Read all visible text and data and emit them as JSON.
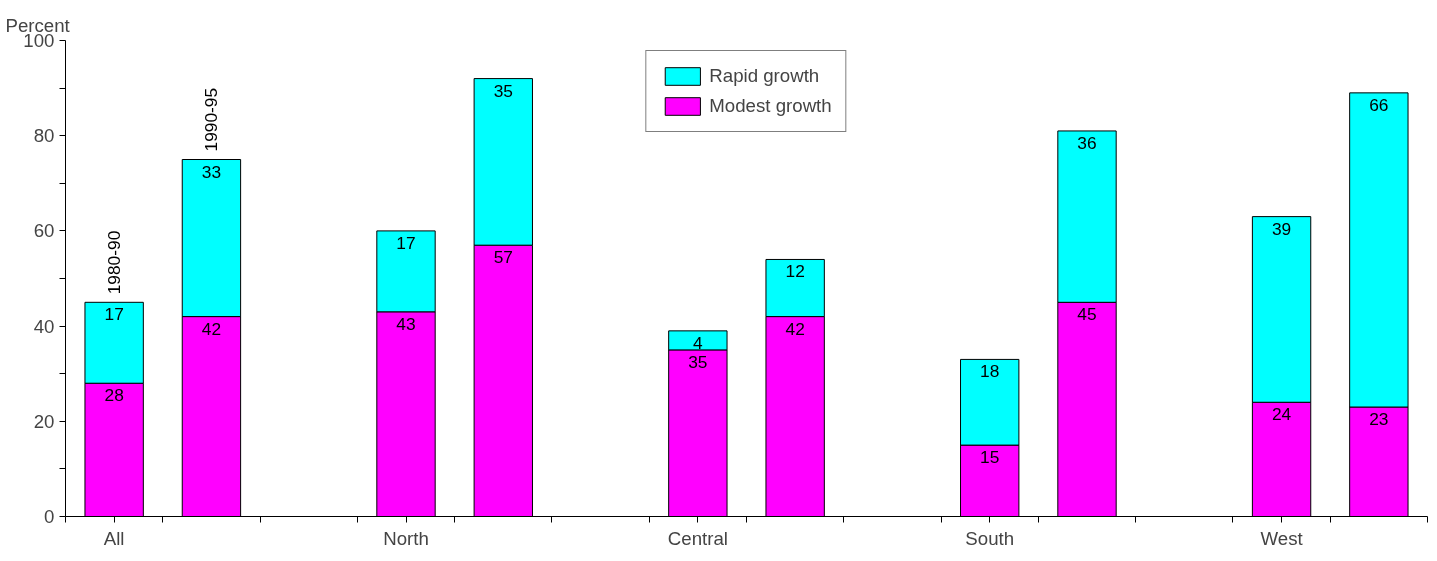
{
  "chart_data": {
    "type": "bar",
    "stacked": true,
    "ylabel": "Percent",
    "categories": [
      "All",
      null,
      "North",
      null,
      "Central",
      null,
      "South",
      null,
      "West",
      null
    ],
    "series": [
      {
        "name": "Modest growth",
        "color": "#ff00ff",
        "values": [
          28,
          42,
          43,
          57,
          35,
          42,
          15,
          45,
          24,
          23
        ]
      },
      {
        "name": "Rapid growth",
        "color": "#00ffff",
        "values": [
          17,
          33,
          17,
          35,
          4,
          12,
          18,
          36,
          39,
          66
        ]
      }
    ],
    "ylim": [
      0,
      100
    ],
    "yticks": [
      0,
      {
        "value": 10,
        "label": null
      },
      20,
      {
        "value": 30,
        "label": null
      },
      40,
      {
        "value": 50,
        "label": null
      },
      60,
      {
        "value": 70,
        "label": null
      },
      80,
      {
        "value": 90,
        "label": null
      },
      100
    ],
    "annotations": [
      "1980-90",
      "1990-95"
    ],
    "data_labels": true,
    "grid": false,
    "legend": "top"
  }
}
